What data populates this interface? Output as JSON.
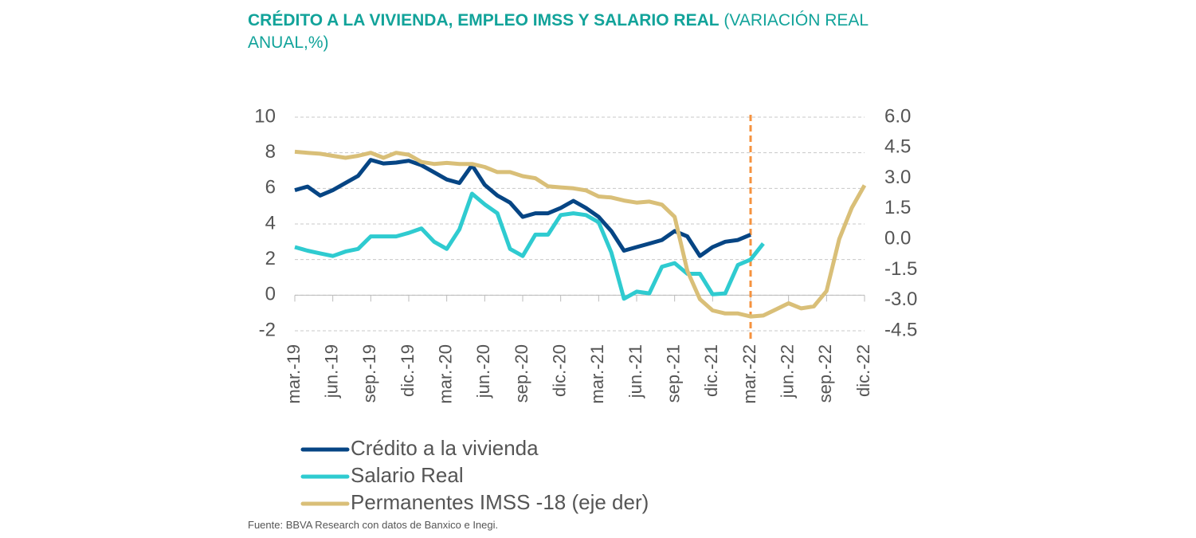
{
  "chart_data": {
    "type": "line",
    "title": "CRÉDITO A LA VIVIENDA, EMPLEO IMSS Y SALARIO REAL",
    "subtitle": "(VARIACIÓN REAL ANUAL,%)",
    "source": "Fuente: BBVA Research con datos de Banxico e Inegi.",
    "categories": [
      "mar.-19",
      null,
      null,
      "jun.-19",
      null,
      null,
      "sep.-19",
      null,
      null,
      "dic.-19",
      null,
      null,
      "mar.-20",
      null,
      null,
      "jun.-20",
      null,
      null,
      "sep.-20",
      null,
      null,
      "dic.-20",
      null,
      null,
      "mar.-21",
      null,
      null,
      "jun.-21",
      null,
      null,
      "sep.-21",
      null,
      null,
      "dic.-21",
      null,
      null,
      "mar.-22",
      null,
      null,
      "jun.-22",
      null,
      null,
      "sep.-22",
      null,
      null,
      "dic.-22"
    ],
    "ylim": [
      -2,
      10
    ],
    "yticks": [
      10,
      8,
      6,
      4,
      2,
      0,
      -2
    ],
    "y2lim": [
      -4.5,
      6
    ],
    "y2ticks": [
      {
        "value": 6,
        "label": "6.0"
      },
      4.5,
      {
        "value": 3,
        "label": "3.0"
      },
      1.5,
      {
        "value": 0,
        "label": "0.0"
      },
      -1.5,
      {
        "value": -3,
        "label": "-3.0"
      },
      -4.5
    ],
    "grid": true,
    "legend": "bottom",
    "vline": {
      "x": "mar.-22",
      "color": "#f5923e",
      "style": "dashed"
    },
    "series": [
      {
        "name": "Crédito a la vivienda",
        "color": "#064584",
        "values": [
          5.9,
          6.1,
          5.6,
          5.9,
          6.3,
          6.7,
          7.6,
          7.4,
          7.45,
          7.55,
          7.3,
          6.9,
          6.5,
          6.3,
          7.3,
          6.2,
          5.6,
          5.2,
          4.4,
          4.6,
          4.6,
          4.9,
          5.3,
          4.9,
          4.4,
          3.6,
          2.5,
          2.7,
          2.9,
          3.1,
          3.6,
          3.3,
          2.2,
          2.7,
          3.0,
          3.1,
          3.4,
          null,
          null,
          null,
          null,
          null,
          null,
          null,
          null,
          null
        ]
      },
      {
        "name": "Salario Real",
        "color": "#2fcbd0",
        "values": [
          2.7,
          2.5,
          2.35,
          2.2,
          2.45,
          2.6,
          3.3,
          3.3,
          3.3,
          3.5,
          3.75,
          3.0,
          2.6,
          3.7,
          5.7,
          5.1,
          4.6,
          2.6,
          2.2,
          3.4,
          3.4,
          4.5,
          4.6,
          4.5,
          4.1,
          2.4,
          -0.2,
          0.2,
          0.1,
          1.6,
          1.8,
          1.2,
          1.2,
          0.05,
          0.1,
          1.7,
          2.0,
          2.9,
          null,
          null,
          null,
          null,
          null,
          null,
          null,
          null
        ]
      },
      {
        "name": "Permanentes IMSS -18 (eje der)",
        "color": "#d9bf78",
        "axis": "y2",
        "values": [
          4.3,
          4.25,
          4.2,
          4.1,
          4.0,
          4.1,
          4.25,
          4.0,
          4.25,
          4.15,
          3.8,
          3.7,
          3.75,
          3.7,
          3.7,
          3.55,
          3.3,
          3.3,
          3.1,
          3.0,
          2.6,
          2.55,
          2.5,
          2.4,
          2.1,
          2.05,
          1.9,
          1.8,
          1.85,
          1.7,
          1.1,
          -1.55,
          -2.95,
          -3.5,
          -3.65,
          -3.65,
          -3.8,
          -3.75,
          -3.45,
          -3.15,
          -3.4,
          -3.3,
          -2.55,
          0.0,
          1.55,
          2.65
        ]
      }
    ]
  }
}
